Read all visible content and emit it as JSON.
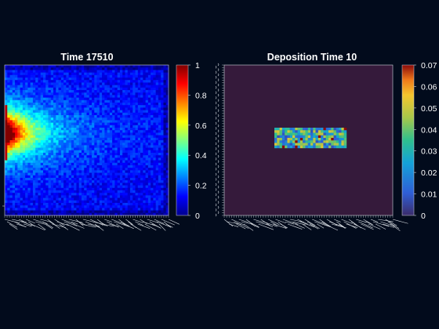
{
  "chart_data": [
    {
      "type": "heatmap",
      "title": "Time 17510",
      "xlabel": "",
      "ylabel": "",
      "colormap": "jet",
      "colorbar": {
        "ticks": [
          "0",
          "0.2",
          "0.4",
          "0.6",
          "0.8",
          "1"
        ],
        "range": [
          0,
          1
        ]
      },
      "field": {
        "description_values": "Concentration high (~1.0) at left edge center band, decaying to right; background ~0.1-0.3",
        "peak": 1.0,
        "background": 0.12
      }
    },
    {
      "type": "heatmap",
      "title": "Deposition Time 10",
      "xlabel": "",
      "ylabel": "",
      "colormap": "parula",
      "colorbar": {
        "ticks": [
          "0",
          "0.01",
          "0.02",
          "0.03",
          "0.04",
          "0.05",
          "0.06",
          "0.07"
        ],
        "range": [
          0,
          0.07
        ]
      },
      "field": {
        "background": 0.0,
        "patch_mean": 0.03,
        "patch_max": 0.07
      }
    }
  ],
  "style": {
    "background": "#020b1c",
    "text_color": "#ffffff",
    "axis_color": "#cfd4dc",
    "deposition_background": "#351a3b"
  }
}
